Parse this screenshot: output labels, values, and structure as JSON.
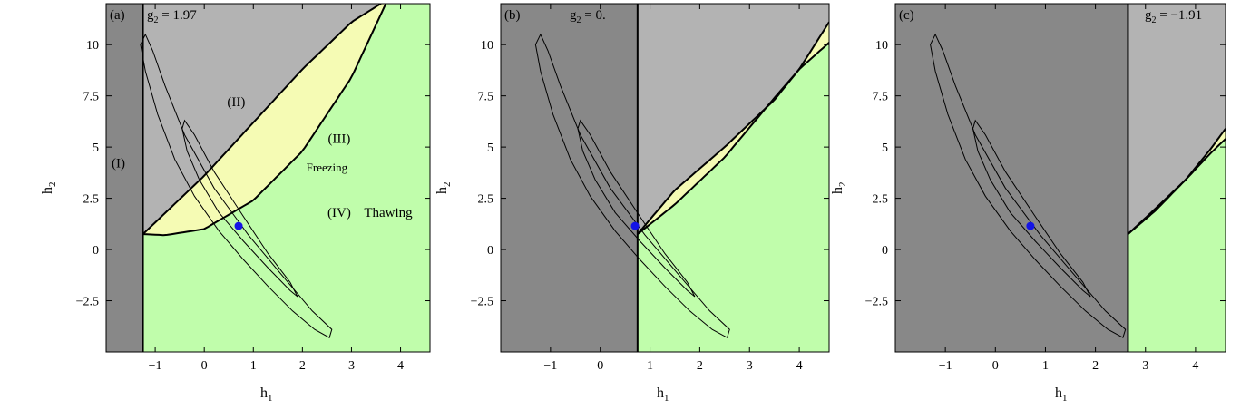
{
  "chart_data": [
    {
      "type": "area",
      "panel_label": "(a)",
      "g2_label": "g",
      "g2_sub": "2",
      "g2_value_text": " = 1.97",
      "g2_value": 1.97,
      "xlabel_main": "h",
      "xlabel_sub": "1",
      "ylabel_main": "h",
      "ylabel_sub": "2",
      "xlim": [
        -2,
        4.6
      ],
      "ylim": [
        -5,
        12
      ],
      "xticks": [
        -1,
        0,
        1,
        2,
        3,
        4
      ],
      "yticks": [
        -2.5,
        0,
        2.5,
        5,
        7.5,
        10
      ],
      "ytick_labels": [
        "−2.5",
        "0",
        "2.5",
        "5",
        "7.5",
        "10"
      ],
      "xtick_labels": [
        "−1",
        "0",
        "1",
        "2",
        "3",
        "4"
      ],
      "boundary_h1": -1.25,
      "upper_curve": {
        "x": [
          -1.25,
          0,
          1,
          2,
          3,
          3.6
        ],
        "y": [
          0.75,
          3.6,
          6.2,
          8.8,
          11.1,
          12.0
        ]
      },
      "lower_curve": {
        "x": [
          -1.25,
          -0.8,
          0,
          1,
          2,
          3,
          3.7
        ],
        "y": [
          0.75,
          0.7,
          1.0,
          2.4,
          4.8,
          8.4,
          12.0
        ]
      },
      "region_labels": [
        {
          "text": "(I)",
          "x": -1.75,
          "y": 4.0
        },
        {
          "text": "(II)",
          "x": 0.65,
          "y": 7.0
        },
        {
          "text": "(III)",
          "x": 2.75,
          "y": 5.2
        },
        {
          "text": "Freezing",
          "x": 2.5,
          "y": 3.8,
          "small": true
        },
        {
          "text": "(IV)",
          "x": 2.75,
          "y": 1.6
        },
        {
          "text": "Thawing",
          "x": 3.75,
          "y": 1.6
        }
      ],
      "best_fit_point": {
        "h1": 0.7,
        "h2": 1.15
      },
      "colors": {
        "region_I": "#888888",
        "region_II": "#b3b3b3",
        "region_III": "#f5fbb4",
        "region_IV": "#c0fdab",
        "point": "#1414e6"
      }
    },
    {
      "type": "area",
      "panel_label": "(b)",
      "g2_label": "g",
      "g2_sub": "2",
      "g2_value_text": " = 0.",
      "g2_value": 0.0,
      "xlabel_main": "h",
      "xlabel_sub": "1",
      "ylabel_main": "h",
      "ylabel_sub": "2",
      "xlim": [
        -2,
        4.6
      ],
      "ylim": [
        -5,
        12
      ],
      "xticks": [
        -1,
        0,
        1,
        2,
        3,
        4
      ],
      "yticks": [
        -2.5,
        0,
        2.5,
        5,
        7.5,
        10
      ],
      "ytick_labels": [
        "−2.5",
        "0",
        "2.5",
        "5",
        "7.5",
        "10"
      ],
      "xtick_labels": [
        "−1",
        "0",
        "1",
        "2",
        "3",
        "4"
      ],
      "boundary_h1": 0.75,
      "upper_curve": {
        "x": [
          0.75,
          1.5,
          2.5,
          3.5,
          4.0,
          4.6
        ],
        "y": [
          0.75,
          2.9,
          5.0,
          7.3,
          8.8,
          11.1
        ]
      },
      "lower_curve": {
        "x": [
          0.75,
          1.5,
          2.5,
          3.5,
          4.0,
          4.6
        ],
        "y": [
          0.75,
          2.2,
          4.5,
          7.4,
          8.8,
          10.1
        ]
      },
      "region_labels": [],
      "best_fit_point": {
        "h1": 0.7,
        "h2": 1.15
      },
      "colors": {
        "region_I": "#888888",
        "region_II": "#b3b3b3",
        "region_III": "#f5fbb4",
        "region_IV": "#c0fdab",
        "point": "#1414e6"
      }
    },
    {
      "type": "area",
      "panel_label": "(c)",
      "g2_label": "g",
      "g2_sub": "2",
      "g2_value_text": " = −1.91",
      "g2_value": -1.91,
      "xlabel_main": "h",
      "xlabel_sub": "1",
      "ylabel_main": "h",
      "ylabel_sub": "2",
      "xlim": [
        -2,
        4.6
      ],
      "ylim": [
        -5,
        12
      ],
      "xticks": [
        -1,
        0,
        1,
        2,
        3,
        4
      ],
      "yticks": [
        -2.5,
        0,
        2.5,
        5,
        7.5,
        10
      ],
      "ytick_labels": [
        "−2.5",
        "0",
        "2.5",
        "5",
        "7.5",
        "10"
      ],
      "xtick_labels": [
        "−1",
        "0",
        "1",
        "2",
        "3",
        "4"
      ],
      "boundary_h1": 2.65,
      "upper_curve": {
        "x": [
          2.65,
          3.2,
          3.8,
          4.3,
          4.6
        ],
        "y": [
          0.75,
          2.0,
          3.4,
          4.9,
          5.9
        ]
      },
      "lower_curve": {
        "x": [
          2.65,
          3.2,
          3.8,
          4.3,
          4.6
        ],
        "y": [
          0.75,
          1.9,
          3.4,
          4.7,
          5.4
        ]
      },
      "region_labels": [],
      "best_fit_point": {
        "h1": 0.7,
        "h2": 1.15
      },
      "colors": {
        "region_I": "#888888",
        "region_II": "#b3b3b3",
        "region_III": "#f5fbb4",
        "region_IV": "#c0fdab",
        "point": "#1414e6"
      }
    }
  ],
  "contours": [
    {
      "name": "outer",
      "h1": [
        -1.2,
        -1.05,
        -0.8,
        -0.4,
        0.2,
        0.9,
        1.6,
        2.2,
        2.6,
        2.55,
        2.25,
        1.8,
        1.3,
        0.8,
        0.3,
        -0.2,
        -0.6,
        -0.95,
        -1.2,
        -1.3,
        -1.2
      ],
      "h2": [
        10.5,
        9.7,
        8.0,
        5.6,
        3.0,
        0.7,
        -1.3,
        -3.0,
        -3.9,
        -4.3,
        -3.9,
        -3.0,
        -1.8,
        -0.5,
        0.9,
        2.6,
        4.4,
        6.6,
        8.7,
        10.0,
        10.5
      ]
    },
    {
      "name": "inner",
      "h1": [
        -0.4,
        -0.2,
        0.2,
        0.8,
        1.3,
        1.75,
        1.9,
        1.75,
        1.3,
        0.8,
        0.3,
        -0.1,
        -0.35,
        -0.45,
        -0.4
      ],
      "h2": [
        6.3,
        5.6,
        3.8,
        1.6,
        -0.2,
        -1.6,
        -2.3,
        -2.0,
        -0.9,
        0.4,
        1.8,
        3.4,
        4.8,
        5.9,
        6.3
      ]
    }
  ]
}
